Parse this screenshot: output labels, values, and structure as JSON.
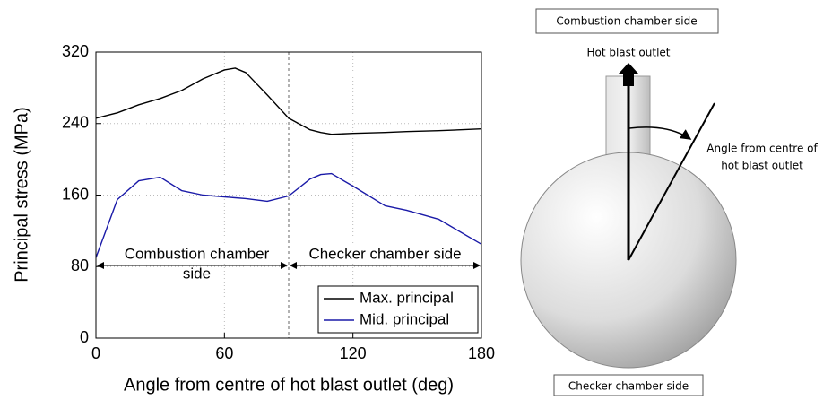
{
  "chart_data": {
    "type": "line",
    "xlabel": "Angle from centre of hot blast outlet (deg)",
    "ylabel": "Principal stress (MPa)",
    "x": [
      0,
      10,
      20,
      30,
      40,
      50,
      60,
      65,
      70,
      80,
      90,
      100,
      105,
      110,
      120,
      135,
      145,
      160,
      180
    ],
    "series": [
      {
        "name": "Max. principal",
        "color": "#000000",
        "values": [
          246,
          252,
          261,
          268,
          277,
          290,
          300,
          302,
          297,
          272,
          246,
          233,
          230,
          228,
          229,
          230,
          231,
          232,
          234
        ]
      },
      {
        "name": "Mid. principal",
        "color": "#1a1aa8",
        "values": [
          90,
          155,
          176,
          180,
          165,
          160,
          158,
          157,
          156,
          153,
          159,
          178,
          183,
          184,
          170,
          148,
          143,
          133,
          105
        ]
      }
    ],
    "xlim": [
      0,
      180
    ],
    "xticks": [
      0,
      60,
      120,
      180
    ],
    "ylim": [
      0,
      320
    ],
    "yticks": [
      0,
      80,
      160,
      240,
      320
    ],
    "grid": true,
    "legend": "lower right",
    "divider_x": 90,
    "annotations": [
      {
        "lines": [
          "Combustion chamber",
          "side"
        ]
      },
      {
        "lines": [
          "Checker chamber side"
        ]
      }
    ]
  },
  "diagram": {
    "top_label": "Combustion chamber side",
    "outlet_label": "Hot blast outlet",
    "angle_label": [
      "Angle from centre of",
      "hot blast outlet"
    ],
    "bottom_label": "Checker chamber side"
  }
}
